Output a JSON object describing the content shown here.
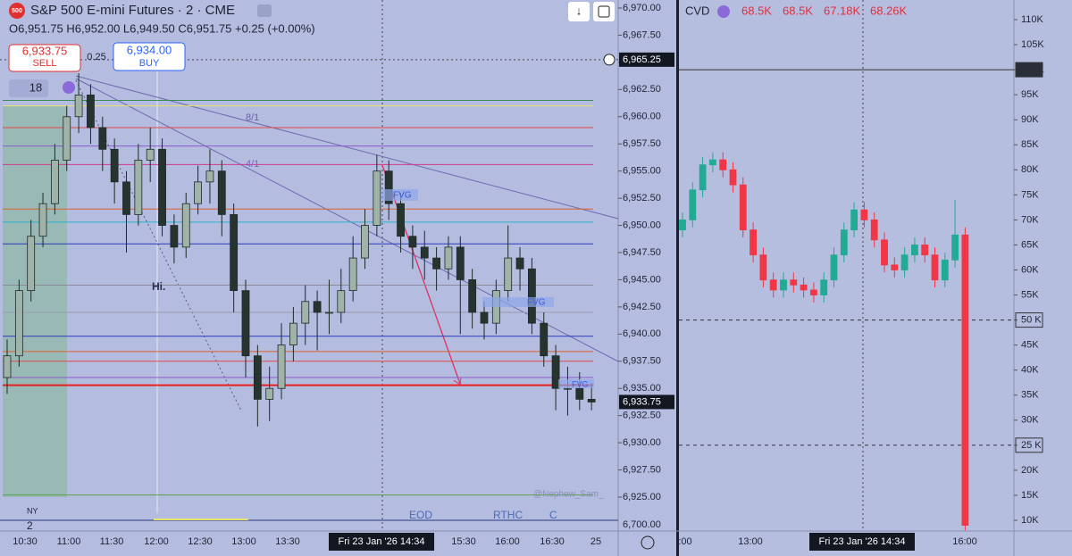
{
  "chart_data": [
    {
      "type": "candlestick",
      "title": "S&P 500 E-mini Futures · 2 · CME",
      "ohlc_text": "O6,951.75 H6,952.00 L6,949.50 C6,951.75 +0.25 (+0.00%)",
      "sell_price": "6,933.75",
      "sell_label": "SELL",
      "spread": "0.25",
      "buy_price": "6,934.00",
      "buy_label": "BUY",
      "interval": "18",
      "annotations": [
        "8/1",
        "4/1",
        "FVG",
        "FVG",
        "FVG",
        "Hi.",
        "@Nephew_Sam_",
        "EOD",
        "RTHC",
        "C",
        "NY",
        "2"
      ],
      "crosshair_time": "Fri 23 Jan '26   14:34",
      "crosshair_price": {
        "value": 6965.25,
        "label": "6,965.25"
      },
      "last_price": {
        "value": 6933.75,
        "label": "6,933.75"
      },
      "volume_axis_label": "6,700.00",
      "time_labels": [
        "10:30",
        "11:00",
        "11:30",
        "12:00",
        "12:30",
        "13:00",
        "13:30",
        "15:30",
        "16:00",
        "16:30",
        "25"
      ],
      "ylim": [
        6925,
        6970
      ],
      "yticks": [
        {
          "value": 6970,
          "label": "6,970.00"
        },
        {
          "value": 6967.5,
          "label": "6,967.50"
        },
        {
          "value": 6965,
          "label": "6,965.00"
        },
        {
          "value": 6962.5,
          "label": "6,962.50"
        },
        {
          "value": 6960,
          "label": "6,960.00"
        },
        {
          "value": 6957.5,
          "label": "6,957.50"
        },
        {
          "value": 6955,
          "label": "6,955.00"
        },
        {
          "value": 6952.5,
          "label": "6,952.50"
        },
        {
          "value": 6950,
          "label": "6,950.00"
        },
        {
          "value": 6947.5,
          "label": "6,947.50"
        },
        {
          "value": 6945,
          "label": "6,945.00"
        },
        {
          "value": 6942.5,
          "label": "6,942.50"
        },
        {
          "value": 6940,
          "label": "6,940.00"
        },
        {
          "value": 6937.5,
          "label": "6,937.50"
        },
        {
          "value": 6935,
          "label": "6,935.00"
        },
        {
          "value": 6932.5,
          "label": "6,932.50"
        },
        {
          "value": 6930,
          "label": "6,930.00"
        },
        {
          "value": 6927.5,
          "label": "6,927.50"
        },
        {
          "value": 6925,
          "label": "6,925.00"
        }
      ],
      "levels": [
        {
          "price": 6961.5,
          "color": "#3d8a5a"
        },
        {
          "price": 6961,
          "color": "#e8e070"
        },
        {
          "price": 6959,
          "color": "#e04848"
        },
        {
          "price": 6957.3,
          "color": "#8a5cc8"
        },
        {
          "price": 6955.6,
          "color": "#d03a8a"
        },
        {
          "price": 6951.5,
          "color": "#e0602a"
        },
        {
          "price": 6950.3,
          "color": "#2ab0c8"
        },
        {
          "price": 6948.3,
          "color": "#2a3ab8"
        },
        {
          "price": 6944.5,
          "color": "#8a8a9a"
        },
        {
          "price": 6942,
          "color": "#9a9aaa"
        },
        {
          "price": 6939.8,
          "color": "#2a3ab8"
        },
        {
          "price": 6938.4,
          "color": "#e0602a"
        },
        {
          "price": 6937.5,
          "color": "#e04848"
        },
        {
          "price": 6936,
          "color": "#8a5cc8"
        },
        {
          "price": 6935.3,
          "color": "#e82020"
        },
        {
          "price": 6925.2,
          "color": "#5aa04a"
        }
      ],
      "up_color": "#9fb3a8",
      "down_color": "#27332f",
      "candles": [
        [
          6936,
          6939.5,
          6934.5,
          6938
        ],
        [
          6938,
          6945,
          6937,
          6944
        ],
        [
          6944,
          6950.5,
          6943,
          6949
        ],
        [
          6949,
          6953,
          6948,
          6952
        ],
        [
          6952,
          6957.5,
          6951,
          6956
        ],
        [
          6956,
          6961,
          6955,
          6960
        ],
        [
          6960,
          6964,
          6958.5,
          6962
        ],
        [
          6962,
          6963,
          6957.5,
          6959
        ],
        [
          6959,
          6960,
          6955,
          6957
        ],
        [
          6957,
          6958,
          6952,
          6954
        ],
        [
          6954,
          6955,
          6947.5,
          6951
        ],
        [
          6951,
          6957.5,
          6950,
          6956
        ],
        [
          6956,
          6959,
          6954,
          6957
        ],
        [
          6957,
          6958,
          6949,
          6950
        ],
        [
          6950,
          6951,
          6946.5,
          6948
        ],
        [
          6948,
          6953,
          6947,
          6952
        ],
        [
          6952,
          6955.5,
          6951,
          6954
        ],
        [
          6954,
          6957,
          6952,
          6955
        ],
        [
          6955,
          6956,
          6949,
          6951
        ],
        [
          6951,
          6952,
          6942,
          6944
        ],
        [
          6944,
          6945,
          6936,
          6938
        ],
        [
          6938,
          6939,
          6931.5,
          6934
        ],
        [
          6934,
          6937,
          6932,
          6935
        ],
        [
          6935,
          6941,
          6934,
          6939
        ],
        [
          6939,
          6942.5,
          6937.5,
          6941
        ],
        [
          6941,
          6944.5,
          6939,
          6943
        ],
        [
          6943,
          6944,
          6938.5,
          6942
        ],
        [
          6942,
          6945,
          6940,
          6942
        ],
        [
          6942,
          6946,
          6941,
          6944
        ],
        [
          6944,
          6949,
          6943,
          6947
        ],
        [
          6947,
          6951.5,
          6946,
          6950
        ],
        [
          6950,
          6956.5,
          6949,
          6955
        ],
        [
          6955,
          6956,
          6950.5,
          6952
        ],
        [
          6952,
          6953,
          6947.5,
          6949
        ],
        [
          6949,
          6950,
          6946,
          6948
        ],
        [
          6948,
          6949.5,
          6945,
          6947
        ],
        [
          6947,
          6948,
          6944,
          6946
        ],
        [
          6946,
          6949,
          6945,
          6948
        ],
        [
          6948,
          6949,
          6940,
          6945
        ],
        [
          6945,
          6946,
          6940.5,
          6942
        ],
        [
          6942,
          6943,
          6939.5,
          6941
        ],
        [
          6941,
          6945,
          6940,
          6944
        ],
        [
          6944,
          6950,
          6943,
          6947
        ],
        [
          6947,
          6948,
          6944,
          6946
        ],
        [
          6946,
          6947,
          6940,
          6941
        ],
        [
          6941,
          6942,
          6937,
          6938
        ],
        [
          6938,
          6939,
          6933,
          6935
        ],
        [
          6935,
          6937,
          6932.5,
          6935
        ],
        [
          6935,
          6936.5,
          6933,
          6934
        ],
        [
          6934,
          6935.5,
          6933,
          6933.75
        ]
      ]
    },
    {
      "type": "candlestick",
      "title": "CVD",
      "legend_values": [
        "68.5K",
        "68.5K",
        "67.18K",
        "68.26K"
      ],
      "crosshair_time": "Fri 23 Jan '26   14:34",
      "time_labels": [
        ":00",
        "13:00",
        "16:00"
      ],
      "ylim": [
        10,
        110
      ],
      "yticks": [
        {
          "value": 110,
          "label": "110K"
        },
        {
          "value": 105,
          "label": "105K"
        },
        {
          "value": 100,
          "label": "100K"
        },
        {
          "value": 95,
          "label": "95K"
        },
        {
          "value": 90,
          "label": "90K"
        },
        {
          "value": 85,
          "label": "85K"
        },
        {
          "value": 80,
          "label": "80K"
        },
        {
          "value": 75,
          "label": "75K"
        },
        {
          "value": 70,
          "label": "70K"
        },
        {
          "value": 65,
          "label": "65K"
        },
        {
          "value": 60,
          "label": "60K"
        },
        {
          "value": 55,
          "label": "55K"
        },
        {
          "value": 50,
          "label": "50 K"
        },
        {
          "value": 45,
          "label": "45K"
        },
        {
          "value": 40,
          "label": "40K"
        },
        {
          "value": 35,
          "label": "35K"
        },
        {
          "value": 30,
          "label": "30K"
        },
        {
          "value": 25,
          "label": "25 K"
        },
        {
          "value": 20,
          "label": "20K"
        },
        {
          "value": 15,
          "label": "15K"
        },
        {
          "value": 10,
          "label": "10K"
        }
      ],
      "marked_levels": [
        100,
        50,
        25
      ],
      "up_color": "#22ab94",
      "down_color": "#f23645",
      "candles": [
        [
          68,
          71.5,
          66.5,
          70
        ],
        [
          70,
          77.5,
          68.5,
          76
        ],
        [
          76,
          82.5,
          74.5,
          81
        ],
        [
          81,
          83.5,
          79.5,
          82
        ],
        [
          82,
          83.5,
          78.5,
          80
        ],
        [
          80,
          81.5,
          75.5,
          77
        ],
        [
          77,
          78.5,
          66.5,
          68
        ],
        [
          68,
          69.5,
          61.5,
          63
        ],
        [
          63,
          64.5,
          56.5,
          58
        ],
        [
          58,
          59.5,
          54.5,
          56
        ],
        [
          56,
          59.5,
          54.5,
          58
        ],
        [
          58,
          59.5,
          55.5,
          57
        ],
        [
          57,
          58.5,
          54.5,
          56
        ],
        [
          56,
          57.5,
          53.5,
          55
        ],
        [
          55,
          59.5,
          53.5,
          58
        ],
        [
          58,
          64.5,
          56.5,
          63
        ],
        [
          63,
          69.5,
          61.5,
          68
        ],
        [
          68,
          73.5,
          66.5,
          72
        ],
        [
          72,
          73.5,
          68.5,
          70
        ],
        [
          70,
          71.5,
          64.5,
          66
        ],
        [
          66,
          67.5,
          59.5,
          61
        ],
        [
          61,
          62.5,
          58.5,
          60
        ],
        [
          60,
          64.5,
          58.5,
          63
        ],
        [
          63,
          66.5,
          61.5,
          65
        ],
        [
          65,
          66.5,
          61.5,
          63
        ],
        [
          63,
          64.5,
          56.5,
          58
        ],
        [
          58,
          63.5,
          56.5,
          62
        ],
        [
          62,
          74,
          60.5,
          67
        ],
        [
          67,
          68.5,
          8,
          9
        ]
      ]
    }
  ]
}
